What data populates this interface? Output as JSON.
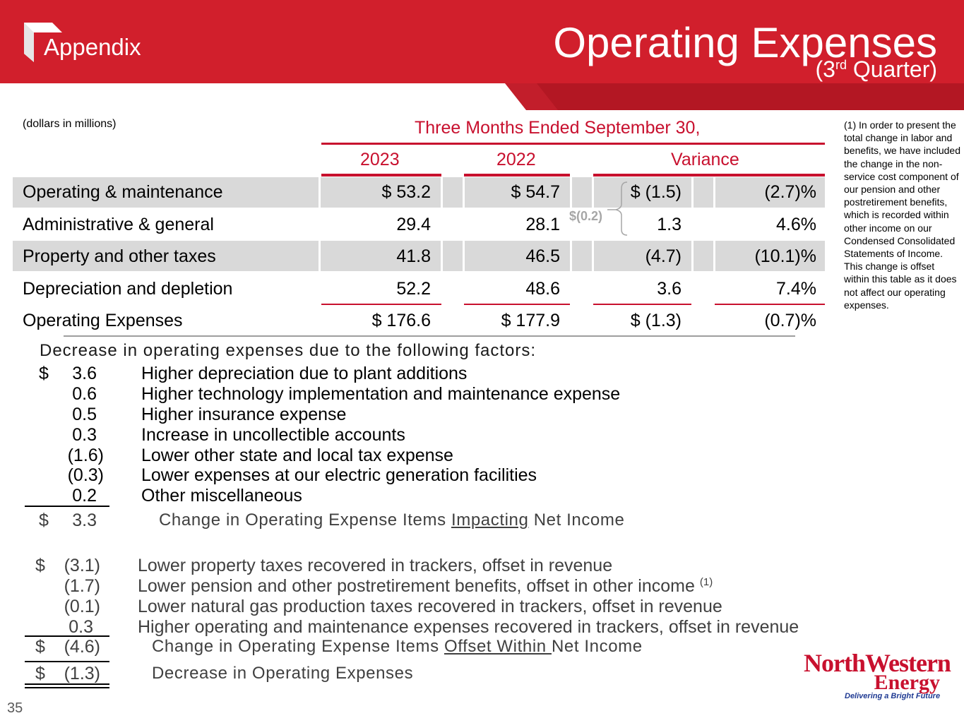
{
  "header": {
    "section": "Appendix",
    "title": "Operating Expenses",
    "subtitle_pre": "(3",
    "subtitle_sup": "rd",
    "subtitle_post": " Quarter)"
  },
  "table": {
    "units": "(dollars in millions)",
    "period": "Three Months Ended September 30,",
    "columns": [
      "2023",
      "2022",
      "Variance"
    ],
    "rows": [
      {
        "label": "Operating & maintenance",
        "y2023": "$ 53.2",
        "y2022": "$ 54.7",
        "var": "$ (1.5)",
        "pct": "(2.7)%"
      },
      {
        "label": "Administrative & general",
        "y2023": "29.4",
        "y2022": "28.1",
        "var": "1.3",
        "pct": "4.6%"
      },
      {
        "label": "Property and other taxes",
        "y2023": "41.8",
        "y2022": "46.5",
        "var": "(4.7)",
        "pct": "(10.1)%"
      },
      {
        "label": "Depreciation and depletion",
        "y2023": "52.2",
        "y2022": "48.6",
        "var": "3.6",
        "pct": "7.4%"
      },
      {
        "label": "Operating Expenses",
        "y2023": "$ 176.6",
        "y2022": "$ 177.9",
        "var": "$ (1.3)",
        "pct": "(0.7)%"
      }
    ],
    "bracket_note": "$(0.2)"
  },
  "footnote": "(1) In order to present the total change in labor and benefits, we have included the change in the non-service cost component of our pension and other postretirement benefits, which is recorded within other income on our Condensed Consolidated Statements of Income. This change is offset within this table as it does not affect our operating expenses.",
  "factors": {
    "heading": "Decrease in operating expenses due to the following factors:",
    "dollar_sign": "$",
    "group1": [
      {
        "amount": "3.6",
        "desc": "Higher depreciation due to plant additions"
      },
      {
        "amount": "0.6",
        "desc": "Higher technology implementation and maintenance expense"
      },
      {
        "amount": "0.5",
        "desc": "Higher insurance expense"
      },
      {
        "amount": "0.3",
        "desc": "Increase in uncollectible accounts"
      },
      {
        "amount": "(1.6)",
        "desc": "Lower other state and local tax expense"
      },
      {
        "amount": "(0.3)",
        "desc": "Lower expenses at our electric generation facilities"
      },
      {
        "amount": "0.2",
        "desc": "Other miscellaneous"
      }
    ],
    "subtotal1": {
      "amount": "3.3",
      "pre": "Change in Operating Expense Items ",
      "underlined": "Impacting",
      "post": " Net Income"
    },
    "group2": [
      {
        "amount": "(3.1)",
        "desc": "Lower property taxes recovered in trackers, offset in revenue"
      },
      {
        "amount": "(1.7)",
        "desc": "Lower pension and other postretirement benefits, offset in other income",
        "note": "(1)"
      },
      {
        "amount": "(0.1)",
        "desc": "Lower natural gas production taxes recovered in trackers, offset in revenue"
      },
      {
        "amount": "0.3",
        "desc": "Higher operating and maintenance expenses recovered in trackers, offset in revenue"
      }
    ],
    "subtotal2": {
      "amount": "(4.6)",
      "pre": "Change in Operating Expense Items ",
      "underlined": "Offset Within ",
      "post": "Net Income"
    },
    "total": {
      "amount": "(1.3)",
      "label": "Decrease in Operating Expenses"
    }
  },
  "page_number": "35",
  "company_logo": {
    "line1": "NorthWestern",
    "line2": "Energy",
    "tagline": "Delivering a Bright Future"
  }
}
